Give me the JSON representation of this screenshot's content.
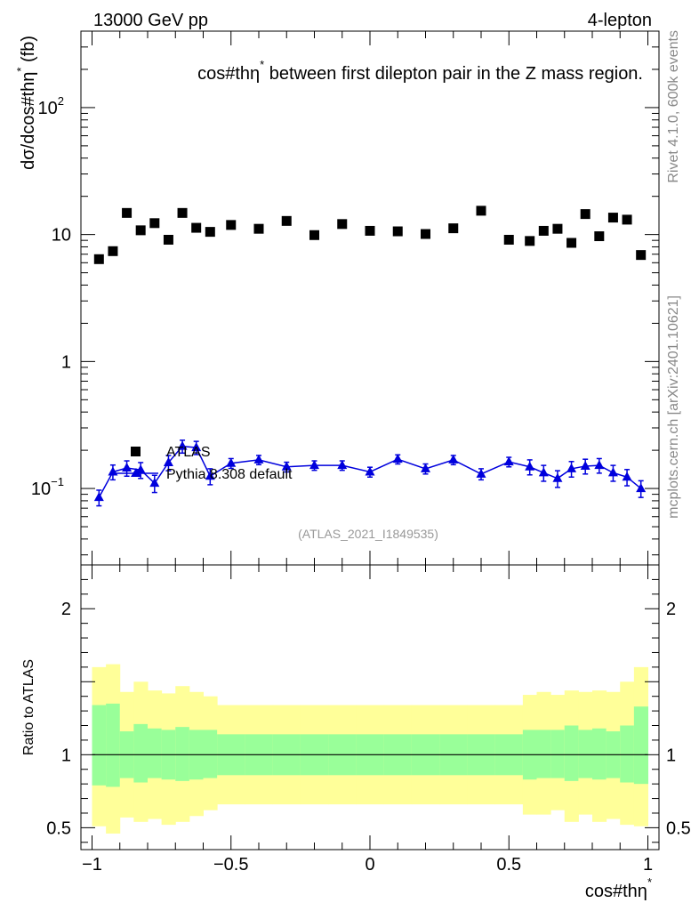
{
  "header": {
    "energy_label": "13000 GeV pp",
    "channel_label": "4-lepton"
  },
  "chart_data": {
    "title": "cos#thη",
    "title_sup": "*",
    "title_rest": " between first dilepton pair in the Z mass region.",
    "type": "scatter",
    "xlabel": "cos#thη",
    "xlabel_sup": "*",
    "ylabel": "dσ/dcos#thη",
    "ylabel_sup": "*",
    "ylabel_unit": " (fb)",
    "ratio_ylabel": "Ratio to ATLAS",
    "analysis_id": "(ATLAS_2021_I1849535)",
    "side_label_top": "Rivet 4.1.0,  600k events",
    "side_label_bottom": "mcplots.cern.ch [arXiv:2401.10621]",
    "xlim": [
      -1.04,
      1.04
    ],
    "ylim_log": [
      0.025,
      400
    ],
    "ratio_ylim": [
      0.35,
      2.3
    ],
    "x_ticks": [
      {
        "v": -1,
        "label": "−1"
      },
      {
        "v": -0.5,
        "label": "−0.5"
      },
      {
        "v": 0,
        "label": "0"
      },
      {
        "v": 0.5,
        "label": "0.5"
      },
      {
        "v": 1,
        "label": "1"
      }
    ],
    "y_ticks": [
      {
        "v": 0.1,
        "base": "10",
        "sup": "−1"
      },
      {
        "v": 1,
        "base": "1",
        "sup": ""
      },
      {
        "v": 10,
        "base": "10",
        "sup": ""
      },
      {
        "v": 100,
        "base": "10",
        "sup": "2"
      }
    ],
    "ratio_ticks": [
      {
        "v": 0.5,
        "label": "0.5"
      },
      {
        "v": 1,
        "label": "1"
      },
      {
        "v": 2,
        "label": "2"
      }
    ],
    "bin_edges": [
      -1.0,
      -0.95,
      -0.9,
      -0.85,
      -0.8,
      -0.75,
      -0.7,
      -0.65,
      -0.6,
      -0.55,
      -0.45,
      -0.35,
      -0.25,
      -0.15,
      -0.05,
      0.05,
      0.15,
      0.25,
      0.35,
      0.45,
      0.55,
      0.6,
      0.65,
      0.7,
      0.75,
      0.8,
      0.85,
      0.9,
      0.95,
      1.0
    ],
    "series": [
      {
        "name": "ATLAS",
        "color": "#000000",
        "marker": "square",
        "x": [
          -0.975,
          -0.925,
          -0.875,
          -0.825,
          -0.775,
          -0.725,
          -0.675,
          -0.625,
          -0.575,
          -0.5,
          -0.4,
          -0.3,
          -0.2,
          -0.1,
          0.0,
          0.1,
          0.2,
          0.3,
          0.4,
          0.5,
          0.575,
          0.625,
          0.675,
          0.725,
          0.775,
          0.825,
          0.875,
          0.925,
          0.975
        ],
        "values": [
          6.4,
          7.4,
          14.8,
          10.8,
          12.3,
          9.1,
          14.8,
          11.3,
          10.5,
          11.9,
          11.1,
          12.8,
          9.9,
          12.1,
          10.7,
          10.6,
          10.1,
          11.2,
          15.4,
          9.1,
          8.9,
          10.7,
          11.1,
          8.6,
          14.5,
          9.7,
          13.6,
          13.1,
          6.9
        ],
        "ratio_band_inner": [
          [
            0.79,
            1.34
          ],
          [
            0.78,
            1.35
          ],
          [
            0.84,
            1.16
          ],
          [
            0.81,
            1.21
          ],
          [
            0.84,
            1.18
          ],
          [
            0.83,
            1.17
          ],
          [
            0.82,
            1.19
          ],
          [
            0.83,
            1.17
          ],
          [
            0.84,
            1.17
          ],
          [
            0.86,
            1.14
          ],
          [
            0.86,
            1.14
          ],
          [
            0.86,
            1.14
          ],
          [
            0.86,
            1.14
          ],
          [
            0.86,
            1.14
          ],
          [
            0.86,
            1.14
          ],
          [
            0.86,
            1.14
          ],
          [
            0.86,
            1.14
          ],
          [
            0.86,
            1.14
          ],
          [
            0.86,
            1.14
          ],
          [
            0.86,
            1.14
          ],
          [
            0.83,
            1.17
          ],
          [
            0.84,
            1.17
          ],
          [
            0.84,
            1.17
          ],
          [
            0.82,
            1.2
          ],
          [
            0.84,
            1.17
          ],
          [
            0.83,
            1.18
          ],
          [
            0.84,
            1.16
          ],
          [
            0.81,
            1.2
          ],
          [
            0.8,
            1.33
          ]
        ],
        "ratio_band_outer": [
          [
            0.51,
            1.6
          ],
          [
            0.46,
            1.62
          ],
          [
            0.57,
            1.43
          ],
          [
            0.54,
            1.5
          ],
          [
            0.56,
            1.44
          ],
          [
            0.52,
            1.42
          ],
          [
            0.54,
            1.47
          ],
          [
            0.58,
            1.43
          ],
          [
            0.62,
            1.4
          ],
          [
            0.66,
            1.34
          ],
          [
            0.66,
            1.34
          ],
          [
            0.66,
            1.34
          ],
          [
            0.66,
            1.34
          ],
          [
            0.66,
            1.34
          ],
          [
            0.66,
            1.34
          ],
          [
            0.66,
            1.34
          ],
          [
            0.66,
            1.34
          ],
          [
            0.66,
            1.34
          ],
          [
            0.66,
            1.34
          ],
          [
            0.66,
            1.34
          ],
          [
            0.59,
            1.41
          ],
          [
            0.59,
            1.43
          ],
          [
            0.62,
            1.41
          ],
          [
            0.54,
            1.44
          ],
          [
            0.59,
            1.43
          ],
          [
            0.54,
            1.44
          ],
          [
            0.56,
            1.43
          ],
          [
            0.52,
            1.5
          ],
          [
            0.51,
            1.6
          ]
        ]
      },
      {
        "name": "Pythia 8.308 default",
        "color": "#0000dd",
        "marker": "triangle",
        "x": [
          -0.975,
          -0.925,
          -0.875,
          -0.825,
          -0.775,
          -0.725,
          -0.675,
          -0.625,
          -0.575,
          -0.5,
          -0.4,
          -0.3,
          -0.2,
          -0.1,
          0.0,
          0.1,
          0.2,
          0.3,
          0.4,
          0.5,
          0.575,
          0.625,
          0.675,
          0.725,
          0.775,
          0.825,
          0.875,
          0.925,
          0.975
        ],
        "values": [
          0.085,
          0.135,
          0.145,
          0.14,
          0.11,
          0.16,
          0.215,
          0.21,
          0.125,
          0.158,
          0.168,
          0.148,
          0.152,
          0.152,
          0.135,
          0.17,
          0.143,
          0.168,
          0.13,
          0.162,
          0.148,
          0.133,
          0.12,
          0.143,
          0.15,
          0.152,
          0.133,
          0.123,
          0.1
        ],
        "errors": [
          0.012,
          0.018,
          0.02,
          0.02,
          0.017,
          0.022,
          0.025,
          0.025,
          0.018,
          0.014,
          0.014,
          0.013,
          0.013,
          0.013,
          0.012,
          0.014,
          0.013,
          0.014,
          0.013,
          0.014,
          0.02,
          0.019,
          0.018,
          0.02,
          0.02,
          0.02,
          0.019,
          0.018,
          0.015
        ]
      }
    ],
    "colors": {
      "band_inner": "#99ff99",
      "band_outer": "#ffff99",
      "axis": "#000000"
    }
  }
}
